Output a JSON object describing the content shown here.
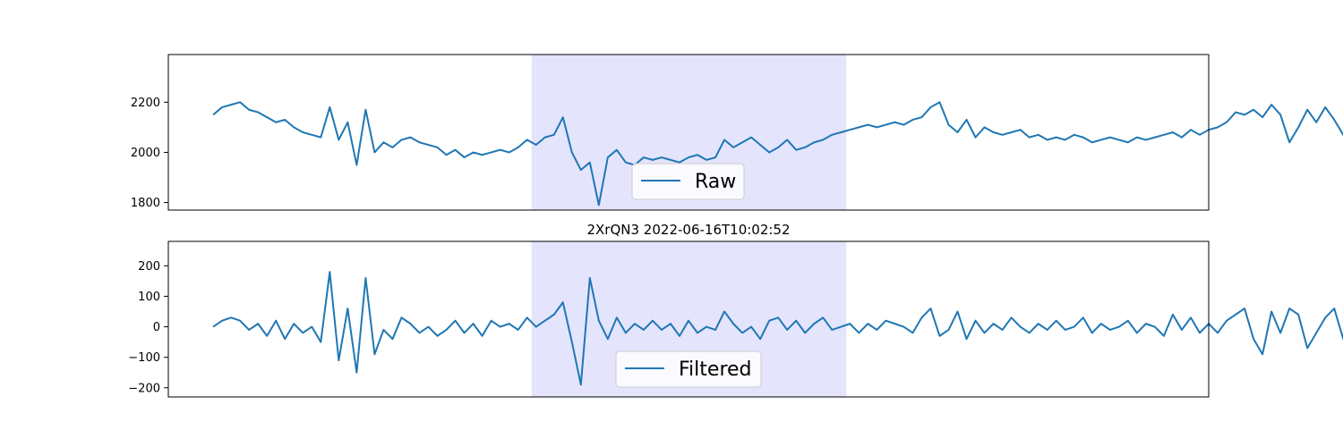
{
  "figure_title": "2XrQN3 2022-06-16T10:02:52",
  "colors": {
    "line": "#1f77b4",
    "highlight": "#e4e4fc",
    "axes": "#000000"
  },
  "chart_data": [
    {
      "type": "line",
      "legend": {
        "label": "Raw",
        "placement": "lower-center"
      },
      "ylim": [
        1770,
        2390
      ],
      "yticks": [
        1800,
        2000,
        2200
      ],
      "xlim": [
        0,
        1160
      ],
      "x_axis_visible": false,
      "grid": false,
      "highlight_x": [
        405,
        756
      ],
      "series": [
        {
          "x0": 50,
          "dx": 10,
          "values": [
            2150,
            2180,
            2190,
            2200,
            2170,
            2160,
            2140,
            2120,
            2130,
            2100,
            2080,
            2070,
            2060,
            2180,
            2050,
            2120,
            1950,
            2170,
            2000,
            2040,
            2020,
            2050,
            2060,
            2040,
            2030,
            2020,
            1990,
            2010,
            1980,
            2000,
            1990,
            2000,
            2010,
            2000,
            2020,
            2050,
            2030,
            2060,
            2070,
            2140,
            2000,
            1930,
            1960,
            1790,
            1980,
            2010,
            1960,
            1950,
            1980,
            1970,
            1980,
            1970,
            1960,
            1980,
            1990,
            1970,
            1980,
            2050,
            2020,
            2040,
            2060,
            2030,
            2000,
            2020,
            2050,
            2010,
            2020,
            2040,
            2050,
            2070,
            2080,
            2090,
            2100,
            2110,
            2100,
            2110,
            2120,
            2110,
            2130,
            2140,
            2180,
            2200,
            2110,
            2080,
            2130,
            2060,
            2100,
            2080,
            2070,
            2080,
            2090,
            2060,
            2070,
            2050,
            2060,
            2050,
            2070,
            2060,
            2040,
            2050,
            2060,
            2050,
            2040,
            2060,
            2050,
            2060,
            2070,
            2080,
            2060,
            2090,
            2070,
            2090,
            2100,
            2120,
            2160,
            2150,
            2170,
            2140,
            2190,
            2150,
            2040,
            2100,
            2170,
            2120,
            2180,
            2130,
            2070,
            2060,
            2120,
            2200,
            2180,
            2190,
            2170,
            2170,
            2160,
            2200,
            2220,
            2240,
            2230,
            2250,
            2240,
            2220,
            2200,
            2180,
            2160,
            2160,
            2130,
            2140,
            2150,
            2120,
            2100,
            2080,
            2040,
            2070,
            2080,
            2090,
            2060,
            2070,
            2080,
            2100,
            2070,
            2080,
            2100,
            2120,
            2190,
            2050,
            2100,
            1930,
            2230,
            2000,
            2100,
            2130,
            2200,
            2160,
            2150,
            2220,
            2190,
            2170,
            2200,
            2210,
            2230,
            2240,
            2170,
            2200,
            2250,
            2180,
            2080,
            2120,
            2360,
            2080,
            2160,
            1910,
            2200,
            2050,
            2060,
            2070,
            2050,
            2040,
            2060,
            2050,
            2060
          ]
        }
      ]
    },
    {
      "type": "line",
      "legend": {
        "label": "Filtered",
        "placement": "lower-center"
      },
      "ylim": [
        -230,
        280
      ],
      "yticks": [
        -200,
        -100,
        0,
        100,
        200
      ],
      "xlim": [
        0,
        1160
      ],
      "x_axis_visible": false,
      "grid": false,
      "highlight_x": [
        405,
        756
      ],
      "series": [
        {
          "x0": 50,
          "dx": 10,
          "values": [
            0,
            20,
            30,
            20,
            -10,
            10,
            -30,
            20,
            -40,
            10,
            -20,
            0,
            -50,
            180,
            -110,
            60,
            -150,
            160,
            -90,
            -10,
            -40,
            30,
            10,
            -20,
            0,
            -30,
            -10,
            20,
            -20,
            10,
            -30,
            20,
            0,
            10,
            -10,
            30,
            0,
            20,
            40,
            80,
            -50,
            -190,
            160,
            20,
            -40,
            30,
            -20,
            10,
            -10,
            20,
            -10,
            10,
            -30,
            20,
            -20,
            0,
            -10,
            50,
            10,
            -20,
            0,
            -40,
            20,
            30,
            -10,
            20,
            -20,
            10,
            30,
            -10,
            0,
            10,
            -20,
            10,
            -10,
            20,
            10,
            0,
            -20,
            30,
            60,
            -30,
            -10,
            50,
            -40,
            20,
            -20,
            10,
            -10,
            30,
            0,
            -20,
            10,
            -10,
            20,
            -10,
            0,
            30,
            -20,
            10,
            -10,
            0,
            20,
            -20,
            10,
            0,
            -30,
            40,
            -10,
            30,
            -20,
            10,
            -20,
            20,
            40,
            60,
            -40,
            -90,
            50,
            -20,
            60,
            40,
            -70,
            -20,
            30,
            60,
            -40,
            -10,
            -20,
            30,
            20,
            -20,
            0,
            40,
            -10,
            20,
            30,
            10,
            -20,
            0,
            20,
            -10,
            -30,
            10,
            -20,
            30,
            0,
            -10,
            20,
            -40,
            10,
            -20,
            20,
            -10,
            30,
            -30,
            10,
            50,
            -100,
            80,
            -40,
            120,
            -140,
            60,
            -80,
            170,
            -70,
            -90,
            130,
            20,
            -30,
            30,
            -10,
            -40,
            60,
            -20,
            40,
            0,
            -80,
            90,
            -30,
            150,
            -120,
            -20,
            -200,
            260,
            -40,
            -180,
            100,
            -10,
            30,
            -30,
            20,
            -40,
            -30
          ]
        }
      ]
    }
  ]
}
